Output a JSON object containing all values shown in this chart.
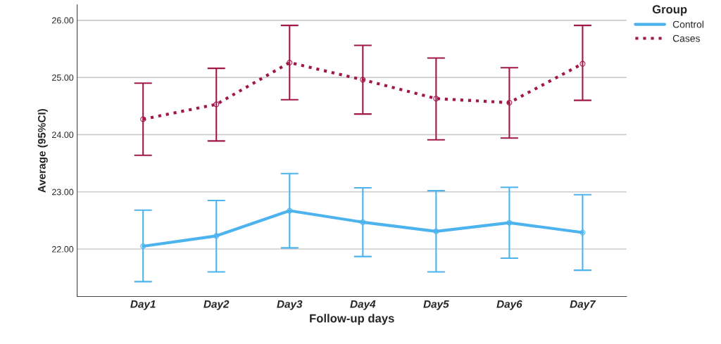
{
  "chart_data": {
    "type": "line",
    "xlabel": "Follow-up days",
    "ylabel": "Average (95%CI)",
    "legend_title": "Group",
    "categories": [
      "Day1",
      "Day2",
      "Day3",
      "Day4",
      "Day5",
      "Day6",
      "Day7"
    ],
    "series": [
      {
        "name": "Control",
        "color": "#4db3ef",
        "line_style": "solid",
        "values": [
          22.05,
          22.23,
          22.67,
          22.47,
          22.31,
          22.46,
          22.29
        ],
        "errors": [
          [
            21.43,
            22.68
          ],
          [
            21.6,
            22.85
          ],
          [
            22.02,
            23.32
          ],
          [
            21.87,
            23.07
          ],
          [
            21.6,
            23.02
          ],
          [
            21.84,
            23.08
          ],
          [
            21.63,
            22.95
          ]
        ]
      },
      {
        "name": "Cases",
        "color": "#a0184a",
        "line_style": "dotted",
        "values": [
          24.27,
          24.53,
          25.26,
          24.96,
          24.63,
          24.56,
          25.24
        ],
        "errors": [
          [
            23.64,
            24.9
          ],
          [
            23.89,
            25.16
          ],
          [
            24.61,
            25.91
          ],
          [
            24.36,
            25.56
          ],
          [
            23.91,
            25.34
          ],
          [
            23.94,
            25.17
          ],
          [
            24.6,
            25.91
          ]
        ]
      }
    ],
    "ylim": [
      21.17,
      26.27
    ],
    "yticks": [
      {
        "value": 22,
        "label": "22.00"
      },
      {
        "value": 23,
        "label": "23.00"
      },
      {
        "value": 24,
        "label": "24.00"
      },
      {
        "value": 25,
        "label": "25.00"
      },
      {
        "value": 26,
        "label": "26.00"
      }
    ],
    "grid": "y",
    "legend": "top right",
    "marker": "circle"
  }
}
